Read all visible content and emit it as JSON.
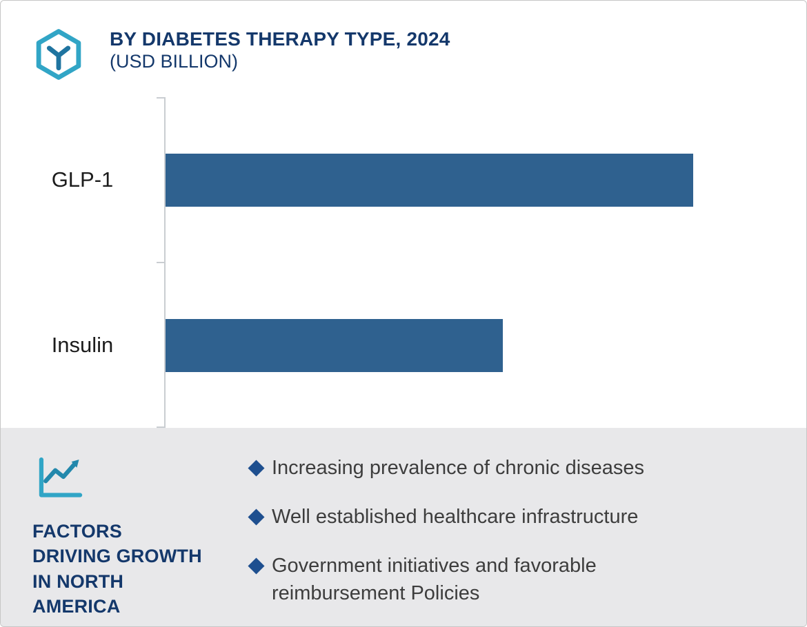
{
  "header": {
    "title": "BY DIABETES THERAPY TYPE, 2024",
    "subtitle": "(USD BILLION)"
  },
  "chart_data": {
    "type": "bar",
    "orientation": "horizontal",
    "title": "BY DIABETES THERAPY TYPE, 2024",
    "subtitle": "(USD BILLION)",
    "categories": [
      "GLP-1",
      "Insulin"
    ],
    "values_relative": [
      100,
      64
    ],
    "value_axis_labeled": false,
    "value_labels_shown": false,
    "grid": false,
    "legend": "none",
    "axis_note": "left vertical baseline with ticks at top, middle and bottom; no numeric scale shown"
  },
  "factors": {
    "heading": "FACTORS DRIVING GROWTH IN NORTH AMERICA",
    "bullets": [
      "Increasing prevalence of chronic diseases",
      "Well established healthcare infrastructure",
      "Government initiatives and favorable reimbursement Policies"
    ]
  },
  "icons": {
    "logo": "hexagon-y-logo-icon",
    "panel": "trend-line-chart-icon",
    "bullet_marker": "diamond"
  },
  "colors": {
    "bar": "#2f618f",
    "title_navy": "#14386b",
    "accent_teal": "#31a5c6",
    "panel_background": "#e8e8ea",
    "bullet_diamond": "#1e4f8f",
    "bullet_text": "#3d3d3d",
    "axis_line": "#c9cdd1"
  }
}
